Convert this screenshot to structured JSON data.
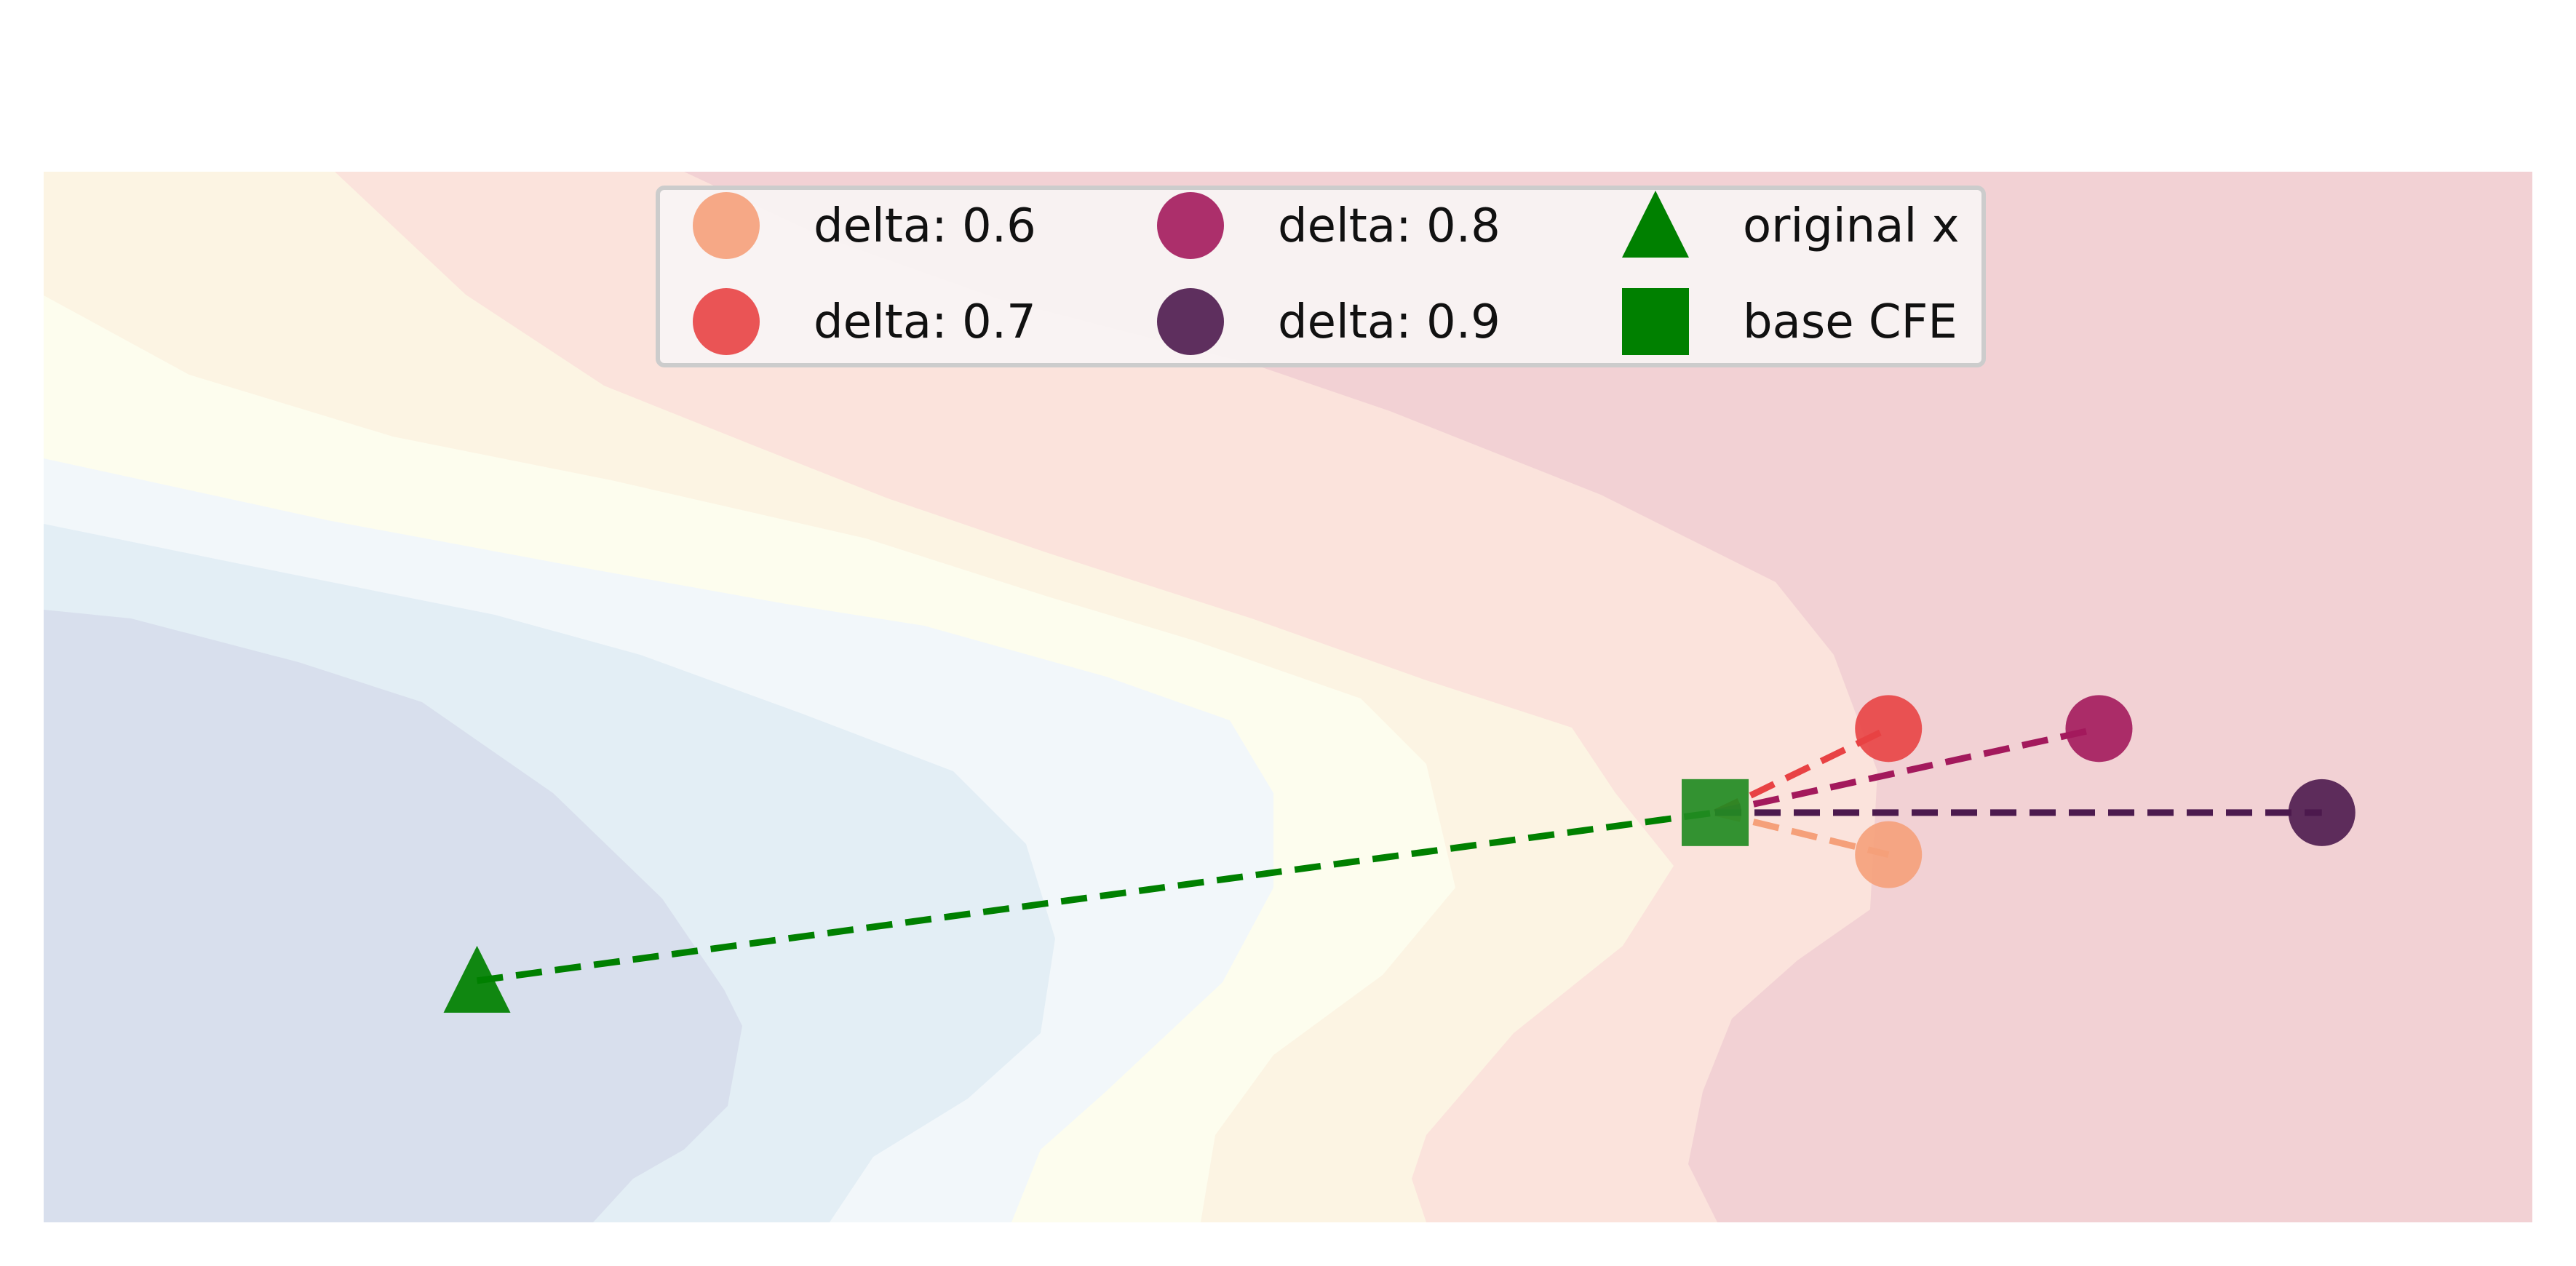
{
  "chart_data": {
    "type": "scatter",
    "title": "",
    "xlabel": "",
    "ylabel": "",
    "grid": false,
    "axes_visible": false,
    "legend_placement": "upper-center",
    "decision_regions": {
      "levels": [
        "lowest",
        "low",
        "mid-low",
        "mid",
        "mid-high",
        "high",
        "highest"
      ],
      "colors": [
        "#d8dfed",
        "#e3eef5",
        "#f2f7fa",
        "#fdfdee",
        "#fcf4e3",
        "#fbe3dc",
        "#f2d1d4"
      ]
    },
    "original_x": {
      "x": 0.0,
      "y": 0.0,
      "color": "#008000",
      "label": "original x"
    },
    "base_cfe": {
      "x": 1.0,
      "y": 0.16,
      "color": "#228b22",
      "label": "base CFE"
    },
    "series": [
      {
        "name": "delta: 0.6",
        "x": 1.14,
        "y": 0.12,
        "color": "#f5a07a"
      },
      {
        "name": "delta: 0.7",
        "x": 1.14,
        "y": 0.24,
        "color": "#e84244"
      },
      {
        "name": "delta: 0.8",
        "x": 1.31,
        "y": 0.24,
        "color": "#a3195c"
      },
      {
        "name": "delta: 0.9",
        "x": 1.49,
        "y": 0.16,
        "color": "#4c1a4e"
      }
    ],
    "xlim": [
      -0.35,
      1.66
    ],
    "ylim": [
      -0.23,
      0.77
    ]
  },
  "legend": {
    "items": [
      {
        "label": "delta: 0.6",
        "marker": "circle",
        "color": "#f5a07a"
      },
      {
        "label": "delta: 0.7",
        "marker": "circle",
        "color": "#e84244"
      },
      {
        "label": "delta: 0.8",
        "marker": "circle",
        "color": "#a3195c"
      },
      {
        "label": "delta: 0.9",
        "marker": "circle",
        "color": "#4c1a4e"
      },
      {
        "label": "original x",
        "marker": "triangle",
        "color": "#008000"
      },
      {
        "label": "base CFE",
        "marker": "square",
        "color": "#008000"
      }
    ]
  }
}
